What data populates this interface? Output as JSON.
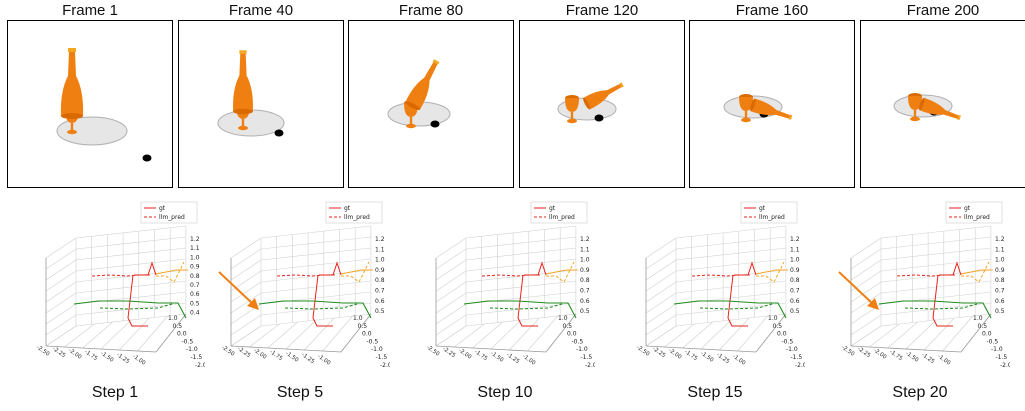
{
  "frames": [
    {
      "title": "Frame 1"
    },
    {
      "title": "Frame 40"
    },
    {
      "title": "Frame 80"
    },
    {
      "title": "Frame 120"
    },
    {
      "title": "Frame 160"
    },
    {
      "title": "Frame 200"
    }
  ],
  "plots": [
    {
      "step": "Step 1"
    },
    {
      "step": "Step 5"
    },
    {
      "step": "Step 10"
    },
    {
      "step": "Step 15"
    },
    {
      "step": "Step 20"
    }
  ],
  "legend": {
    "gt": "gt",
    "pred": "llm_pred"
  },
  "axes": {
    "z_ticks": [
      "1.2",
      "1.1",
      "1.0",
      "0.9",
      "0.8",
      "0.7",
      "0.6",
      "0.5",
      "0.4"
    ],
    "z_ticks_short": [
      "1.2",
      "1.1",
      "1.0",
      "0.9",
      "0.8",
      "0.7",
      "0.6",
      "0.5"
    ],
    "x_ticks": [
      "-2.50",
      "-2.25",
      "-2.00",
      "-1.75",
      "-1.50",
      "-1.25",
      "-1.00"
    ],
    "y_ticks": [
      "1.0",
      "0.5",
      "0.0",
      "-0.5",
      "-1.0",
      "-1.5",
      "-2.0"
    ]
  },
  "colors": {
    "gt": "#e8231a",
    "pred": "#e8231a",
    "green": "#1e8c1e",
    "orange_traj": "#f5a623",
    "object": "#f07f12",
    "arrow": "#f07f12"
  }
}
